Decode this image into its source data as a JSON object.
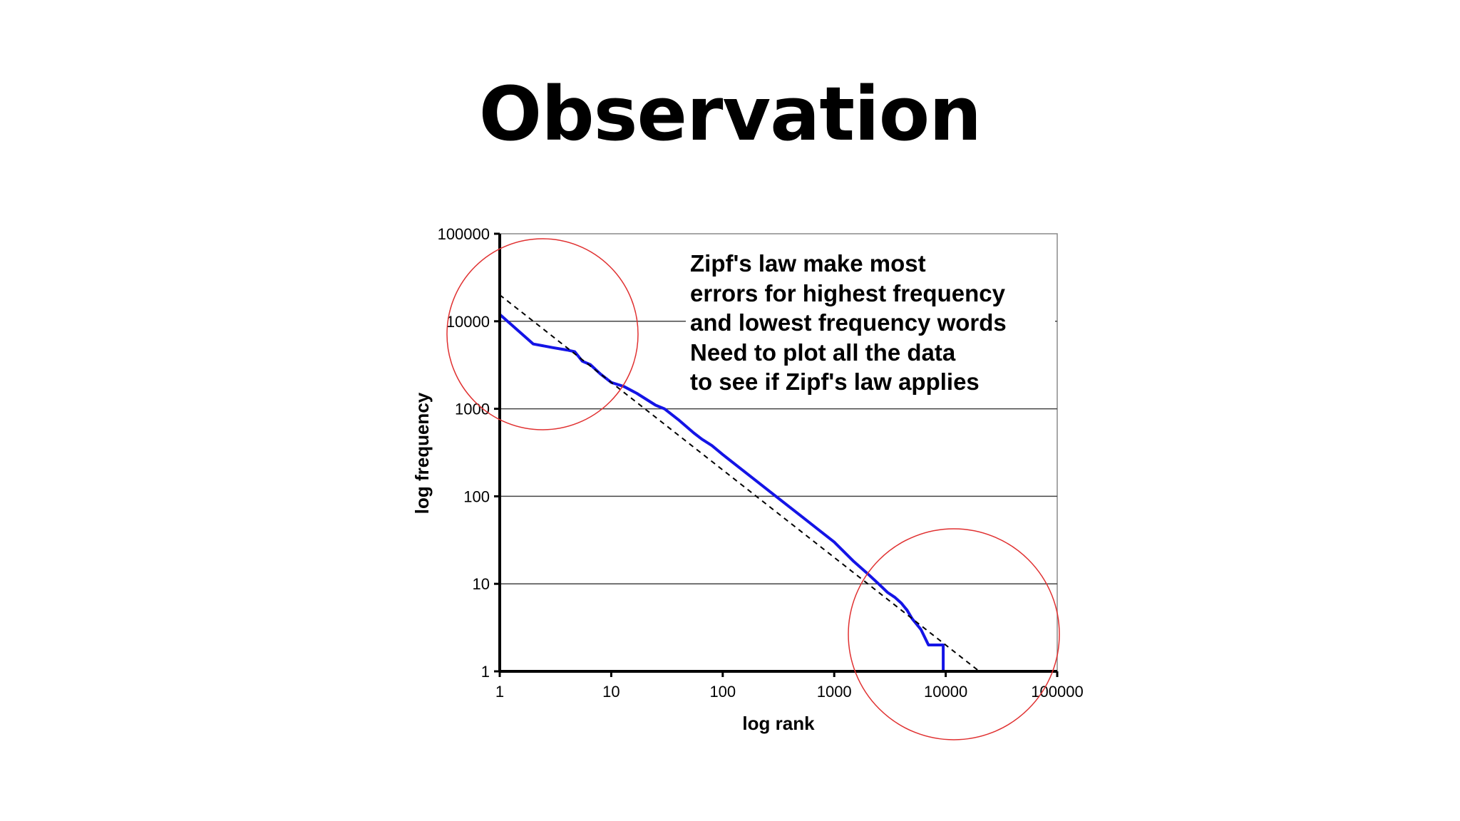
{
  "slide": {
    "title": "Observation"
  },
  "chart_data": {
    "type": "line",
    "title": "",
    "xlabel": "log rank",
    "ylabel": "log frequency",
    "xscale": "log",
    "yscale": "log",
    "xlim": [
      1,
      100000
    ],
    "ylim": [
      1,
      100000
    ],
    "xticks": [
      "1",
      "10",
      "100",
      "1000",
      "10000",
      "100000"
    ],
    "yticks": [
      "1",
      "10",
      "100",
      "1000",
      "10000",
      "100000"
    ],
    "grid": "horizontal",
    "series": [
      {
        "style": "solid",
        "color": "#1414e6",
        "points": [
          [
            1,
            12000
          ],
          [
            2,
            5500
          ],
          [
            3,
            5000
          ],
          [
            4,
            4700
          ],
          [
            4.7,
            4500
          ],
          [
            5.5,
            3500
          ],
          [
            6.5,
            3200
          ],
          [
            8,
            2500
          ],
          [
            10,
            2000
          ],
          [
            13,
            1800
          ],
          [
            17,
            1500
          ],
          [
            25,
            1100
          ],
          [
            30,
            1000
          ],
          [
            40,
            750
          ],
          [
            55,
            530
          ],
          [
            65,
            450
          ],
          [
            80,
            380
          ],
          [
            100,
            300
          ],
          [
            150,
            200
          ],
          [
            200,
            150
          ],
          [
            300,
            100
          ],
          [
            500,
            60
          ],
          [
            1000,
            30
          ],
          [
            1500,
            18
          ],
          [
            2000,
            13
          ],
          [
            2500,
            10
          ],
          [
            3000,
            8
          ],
          [
            3500,
            7
          ],
          [
            4000,
            6
          ],
          [
            4500,
            5
          ],
          [
            5000,
            4
          ],
          [
            6000,
            3
          ],
          [
            7000,
            2
          ],
          [
            8500,
            2
          ],
          [
            9500,
            2
          ],
          [
            9500,
            1
          ],
          [
            20000,
            1
          ]
        ]
      },
      {
        "style": "dashed",
        "color": "#000000",
        "points": [
          [
            1,
            20000
          ],
          [
            20000,
            1
          ]
        ]
      }
    ],
    "annotations": {
      "text_lines": [
        "Zipf's law make most",
        "errors for highest frequency",
        "and lowest frequency words",
        "Need to plot all the data",
        "to see if Zipf's law applies"
      ],
      "circle_color": "#e03030"
    }
  }
}
